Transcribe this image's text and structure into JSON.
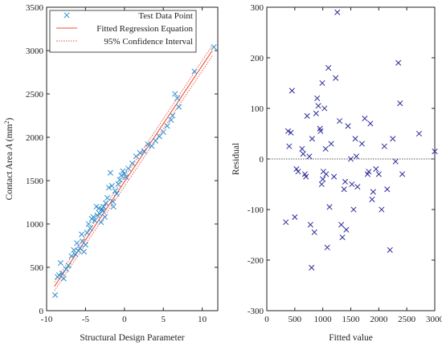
{
  "chart_data": [
    {
      "type": "scatter",
      "xlabel": "Structural Design Parameter",
      "ylabel_parts": [
        "Contact  Area ",
        "A",
        " (mm",
        "2",
        ")"
      ],
      "xlim": [
        -10,
        12
      ],
      "ylim": [
        0,
        3500
      ],
      "xticks": [
        -10,
        -5,
        0,
        5,
        10
      ],
      "yticks": [
        0,
        500,
        1000,
        1500,
        2000,
        2500,
        3000,
        3500
      ],
      "legend": {
        "position": "top-left",
        "entries": [
          "Test Data Point",
          "Fitted Regression Equation",
          "95% Confidence Interval"
        ]
      },
      "colors": {
        "points": "#2f8fd0",
        "fit": "#e8533a",
        "ci": "#e8533a"
      },
      "series": [
        {
          "name": "Test Data Point",
          "points": [
            [
              -8.9,
              180
            ],
            [
              -8.6,
              390
            ],
            [
              -8.4,
              410
            ],
            [
              -8.2,
              550
            ],
            [
              -8.0,
              430
            ],
            [
              -7.8,
              370
            ],
            [
              -7.5,
              480
            ],
            [
              -7.2,
              520
            ],
            [
              -6.8,
              630
            ],
            [
              -6.5,
              700
            ],
            [
              -6.3,
              650
            ],
            [
              -6.1,
              780
            ],
            [
              -5.9,
              690
            ],
            [
              -5.7,
              720
            ],
            [
              -5.5,
              880
            ],
            [
              -5.4,
              800
            ],
            [
              -5.2,
              680
            ],
            [
              -5.0,
              760
            ],
            [
              -4.8,
              900
            ],
            [
              -4.6,
              1000
            ],
            [
              -4.4,
              950
            ],
            [
              -4.2,
              1060
            ],
            [
              -4.0,
              1080
            ],
            [
              -3.8,
              1040
            ],
            [
              -3.6,
              1200
            ],
            [
              -3.5,
              1100
            ],
            [
              -3.3,
              1180
            ],
            [
              -3.2,
              1120
            ],
            [
              -3.0,
              1020
            ],
            [
              -2.9,
              1170
            ],
            [
              -2.8,
              1150
            ],
            [
              -2.7,
              1200
            ],
            [
              -2.5,
              1080
            ],
            [
              -2.4,
              1240
            ],
            [
              -2.2,
              1300
            ],
            [
              -2.0,
              1420
            ],
            [
              -1.8,
              1590
            ],
            [
              -1.6,
              1440
            ],
            [
              -1.5,
              1260
            ],
            [
              -1.4,
              1200
            ],
            [
              -1.2,
              1380
            ],
            [
              -1.0,
              1350
            ],
            [
              -0.8,
              1460
            ],
            [
              -0.6,
              1510
            ],
            [
              -0.4,
              1560
            ],
            [
              -0.2,
              1610
            ],
            [
              0.0,
              1580
            ],
            [
              0.2,
              1540
            ],
            [
              0.5,
              1640
            ],
            [
              1.0,
              1700
            ],
            [
              1.5,
              1780
            ],
            [
              2.0,
              1820
            ],
            [
              2.5,
              1840
            ],
            [
              3.0,
              1920
            ],
            [
              3.5,
              1900
            ],
            [
              4.0,
              1960
            ],
            [
              4.5,
              2010
            ],
            [
              5.0,
              2060
            ],
            [
              5.5,
              2130
            ],
            [
              6.0,
              2200
            ],
            [
              6.2,
              2250
            ],
            [
              6.5,
              2500
            ],
            [
              6.8,
              2450
            ],
            [
              7.0,
              2350
            ],
            [
              9.0,
              2760
            ],
            [
              11.5,
              3040
            ]
          ]
        },
        {
          "name": "Fitted Regression Equation",
          "line": [
            [
              -9,
              280
            ],
            [
              11.3,
              3000
            ]
          ]
        },
        {
          "name": "95% Confidence Interval",
          "upper": [
            [
              -9,
              330
            ],
            [
              11.3,
              3060
            ]
          ],
          "lower": [
            [
              -9,
              230
            ],
            [
              11.3,
              2940
            ]
          ]
        }
      ]
    },
    {
      "type": "scatter",
      "xlabel": "Fitted value",
      "ylabel": "Residual",
      "xlim": [
        0,
        3000
      ],
      "ylim": [
        -300,
        300
      ],
      "xticks": [
        0,
        500,
        1000,
        1500,
        2000,
        2500,
        3000
      ],
      "yticks": [
        -300,
        -200,
        -100,
        0,
        100,
        200,
        300
      ],
      "zero_line": 0,
      "colors": {
        "points": "#2a2a9a",
        "zero_line": "#555555"
      },
      "series": [
        {
          "name": "",
          "points": [
            [
              340,
              -125
            ],
            [
              380,
              55
            ],
            [
              400,
              25
            ],
            [
              430,
              52
            ],
            [
              450,
              135
            ],
            [
              500,
              -115
            ],
            [
              530,
              -20
            ],
            [
              560,
              -25
            ],
            [
              630,
              20
            ],
            [
              650,
              10
            ],
            [
              680,
              -30
            ],
            [
              700,
              -35
            ],
            [
              720,
              85
            ],
            [
              760,
              5
            ],
            [
              780,
              -130
            ],
            [
              800,
              -215
            ],
            [
              810,
              40
            ],
            [
              850,
              -145
            ],
            [
              880,
              90
            ],
            [
              900,
              120
            ],
            [
              920,
              105
            ],
            [
              950,
              60
            ],
            [
              960,
              55
            ],
            [
              980,
              -50
            ],
            [
              990,
              150
            ],
            [
              1000,
              -40
            ],
            [
              1010,
              -25
            ],
            [
              1030,
              100
            ],
            [
              1050,
              20
            ],
            [
              1060,
              -30
            ],
            [
              1080,
              -175
            ],
            [
              1100,
              180
            ],
            [
              1120,
              -95
            ],
            [
              1150,
              30
            ],
            [
              1200,
              -35
            ],
            [
              1230,
              160
            ],
            [
              1260,
              290
            ],
            [
              1300,
              75
            ],
            [
              1330,
              -130
            ],
            [
              1350,
              -155
            ],
            [
              1380,
              -60
            ],
            [
              1400,
              -45
            ],
            [
              1420,
              -140
            ],
            [
              1450,
              65
            ],
            [
              1500,
              0
            ],
            [
              1520,
              -50
            ],
            [
              1550,
              -100
            ],
            [
              1580,
              40
            ],
            [
              1600,
              5
            ],
            [
              1620,
              -55
            ],
            [
              1700,
              30
            ],
            [
              1750,
              80
            ],
            [
              1800,
              -30
            ],
            [
              1820,
              -25
            ],
            [
              1850,
              70
            ],
            [
              1880,
              -80
            ],
            [
              1900,
              -65
            ],
            [
              1950,
              -20
            ],
            [
              2000,
              -30
            ],
            [
              2050,
              -100
            ],
            [
              2100,
              25
            ],
            [
              2150,
              -60
            ],
            [
              2200,
              -180
            ],
            [
              2250,
              40
            ],
            [
              2300,
              -5
            ],
            [
              2350,
              190
            ],
            [
              2380,
              110
            ],
            [
              2420,
              -30
            ],
            [
              2720,
              50
            ],
            [
              3000,
              15
            ]
          ]
        }
      ]
    }
  ]
}
